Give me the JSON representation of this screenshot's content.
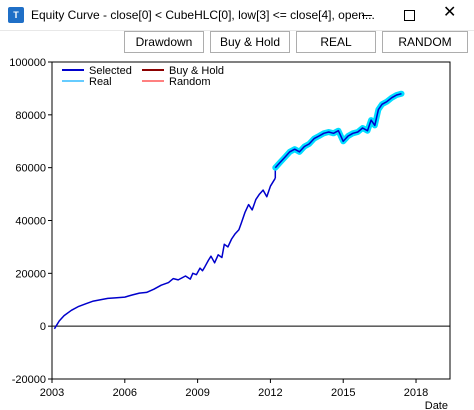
{
  "window": {
    "title": "Equity Curve - close[0] < CubeHLC[0], low[3] <= close[4], open...",
    "icon_name": "app-icon",
    "icon_text": "T"
  },
  "toolbar": {
    "buttons": [
      "Drawdown",
      "Buy & Hold",
      "REAL",
      "RANDOM"
    ]
  },
  "chart_data": {
    "type": "line",
    "xlabel": "Date",
    "ylabel": "",
    "xlim": [
      2003.0,
      2019.4
    ],
    "ylim": [
      -20000,
      100000
    ],
    "x_ticks": [
      2003,
      2006,
      2009,
      2012,
      2015,
      2018
    ],
    "y_ticks": [
      -20000,
      0,
      20000,
      40000,
      60000,
      80000,
      100000
    ],
    "y_tick_labels": [
      "-20000",
      "0",
      "20000",
      "40000",
      "60000",
      "80000",
      "100000"
    ],
    "legend": {
      "position": "top-left",
      "entries": [
        {
          "name": "Selected",
          "color": "#0000cc"
        },
        {
          "name": "Buy & Hold",
          "color": "#8b0000"
        },
        {
          "name": "Real",
          "color": "#66ccff"
        },
        {
          "name": "Random",
          "color": "#ff8080"
        }
      ]
    },
    "series": [
      {
        "name": "Selected",
        "color": "#0000cc",
        "x": [
          2003.1,
          2003.3,
          2003.5,
          2003.8,
          2004.1,
          2004.4,
          2004.7,
          2005.0,
          2005.3,
          2005.6,
          2006.0,
          2006.3,
          2006.6,
          2006.9,
          2007.2,
          2007.5,
          2007.8,
          2008.0,
          2008.2,
          2008.5,
          2008.7,
          2008.8,
          2008.95,
          2009.1,
          2009.2,
          2009.3,
          2009.45,
          2009.55,
          2009.7,
          2009.85,
          2010.0,
          2010.1,
          2010.25,
          2010.4,
          2010.55,
          2010.7,
          2010.8,
          2010.95,
          2011.1,
          2011.25,
          2011.4,
          2011.55,
          2011.7,
          2011.85,
          2012.0,
          2012.2
        ],
        "y": [
          -1000,
          2000,
          4000,
          6000,
          7500,
          8500,
          9500,
          10000,
          10500,
          10700,
          11000,
          11800,
          12500,
          12800,
          14000,
          15500,
          16500,
          18000,
          17500,
          19000,
          17800,
          20000,
          19500,
          22000,
          21000,
          22500,
          25000,
          26500,
          24000,
          27000,
          26000,
          31000,
          30000,
          33000,
          35000,
          36500,
          39000,
          43000,
          46000,
          44000,
          48000,
          50000,
          51500,
          49000,
          53000,
          56000
        ]
      },
      {
        "name": "Real",
        "color": "#00ddff",
        "x": [
          2012.2,
          2012.4,
          2012.6,
          2012.8,
          2013.0,
          2013.2,
          2013.4,
          2013.6,
          2013.8,
          2014.0,
          2014.2,
          2014.4,
          2014.6,
          2014.8,
          2015.0,
          2015.2,
          2015.4,
          2015.6,
          2015.8,
          2016.0,
          2016.15,
          2016.3,
          2016.45,
          2016.6,
          2016.8,
          2017.0,
          2017.2,
          2017.4
        ],
        "y": [
          60000,
          62000,
          64000,
          66000,
          67000,
          66000,
          68000,
          69000,
          71000,
          72000,
          73000,
          73500,
          73000,
          74000,
          70000,
          72000,
          73000,
          73500,
          75000,
          74000,
          78000,
          76000,
          82000,
          84000,
          85000,
          86500,
          87500,
          88000
        ]
      }
    ]
  }
}
